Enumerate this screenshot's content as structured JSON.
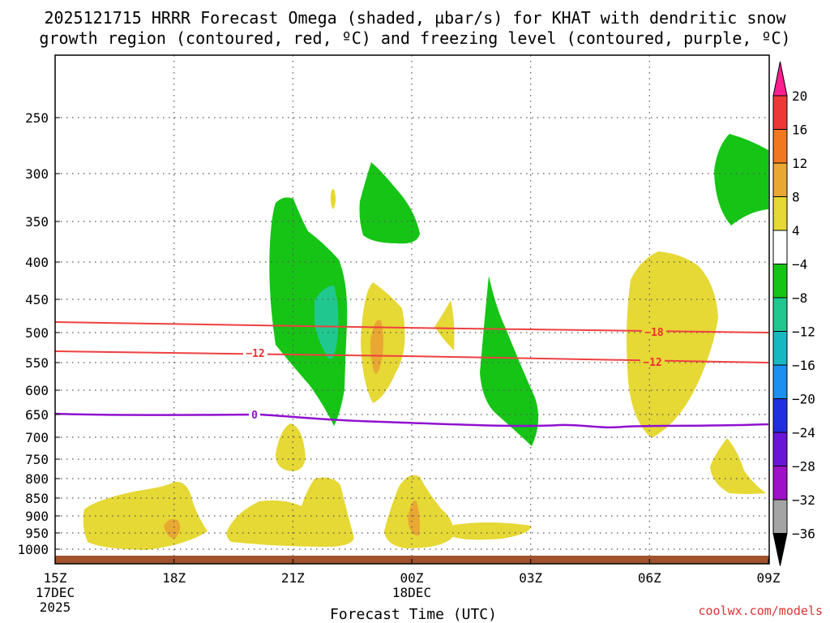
{
  "chart_data": {
    "type": "heatmap",
    "title_line1": "2025121715 HRRR Forecast Omega (shaded, µbar/s) for KHAT with dendritic snow",
    "title_line2": "growth region (contoured, red, ºC) and freezing level (contoured, purple, ºC)",
    "xlabel": "Forecast Time (UTC)",
    "credit": "coolwx.com/models",
    "x_ticks": [
      {
        "label": "15Z",
        "sub1": "17DEC",
        "sub2": "2025",
        "hour": 0
      },
      {
        "label": "18Z",
        "sub1": "",
        "sub2": "",
        "hour": 3
      },
      {
        "label": "21Z",
        "sub1": "",
        "sub2": "",
        "hour": 6
      },
      {
        "label": "00Z",
        "sub1": "18DEC",
        "sub2": "",
        "hour": 9
      },
      {
        "label": "03Z",
        "sub1": "",
        "sub2": "",
        "hour": 12
      },
      {
        "label": "06Z",
        "sub1": "",
        "sub2": "",
        "hour": 15
      },
      {
        "label": "09Z",
        "sub1": "",
        "sub2": "",
        "hour": 18
      }
    ],
    "x_range_hours": [
      0,
      18
    ],
    "y_range_hpa": [
      1000,
      200
    ],
    "y_ticks": [
      "250",
      "300",
      "350",
      "400",
      "450",
      "500",
      "550",
      "600",
      "650",
      "700",
      "750",
      "800",
      "850",
      "900",
      "950",
      "1000"
    ],
    "colorbar": {
      "labels": [
        "20",
        "16",
        "12",
        "8",
        "4",
        "−4",
        "−8",
        "−12",
        "−16",
        "−20",
        "−24",
        "−28",
        "−32",
        "−36"
      ],
      "colors": [
        "#ff1f8f",
        "#ee3838",
        "#f07820",
        "#e8a832",
        "#e6d835",
        "#ffffff",
        "#16c416",
        "#20c890",
        "#18b8c0",
        "#1c90ee",
        "#2030e0",
        "#6a14d8",
        "#a010c8",
        "#a4a4a4",
        "#000000"
      ]
    },
    "contours": [
      {
        "name": "dgz-top",
        "label": "−18",
        "color": "#ee4040",
        "p_start": 485,
        "p_end": 500
      },
      {
        "name": "dgz-bottom",
        "label": "−12",
        "color": "#ee4040",
        "p_start": 530,
        "p_end": 548
      },
      {
        "name": "freezing-level",
        "label": "0",
        "color": "#9010d0",
        "p_start": 650,
        "p_end": 672
      }
    ],
    "terrain_color": "#a0522d"
  }
}
